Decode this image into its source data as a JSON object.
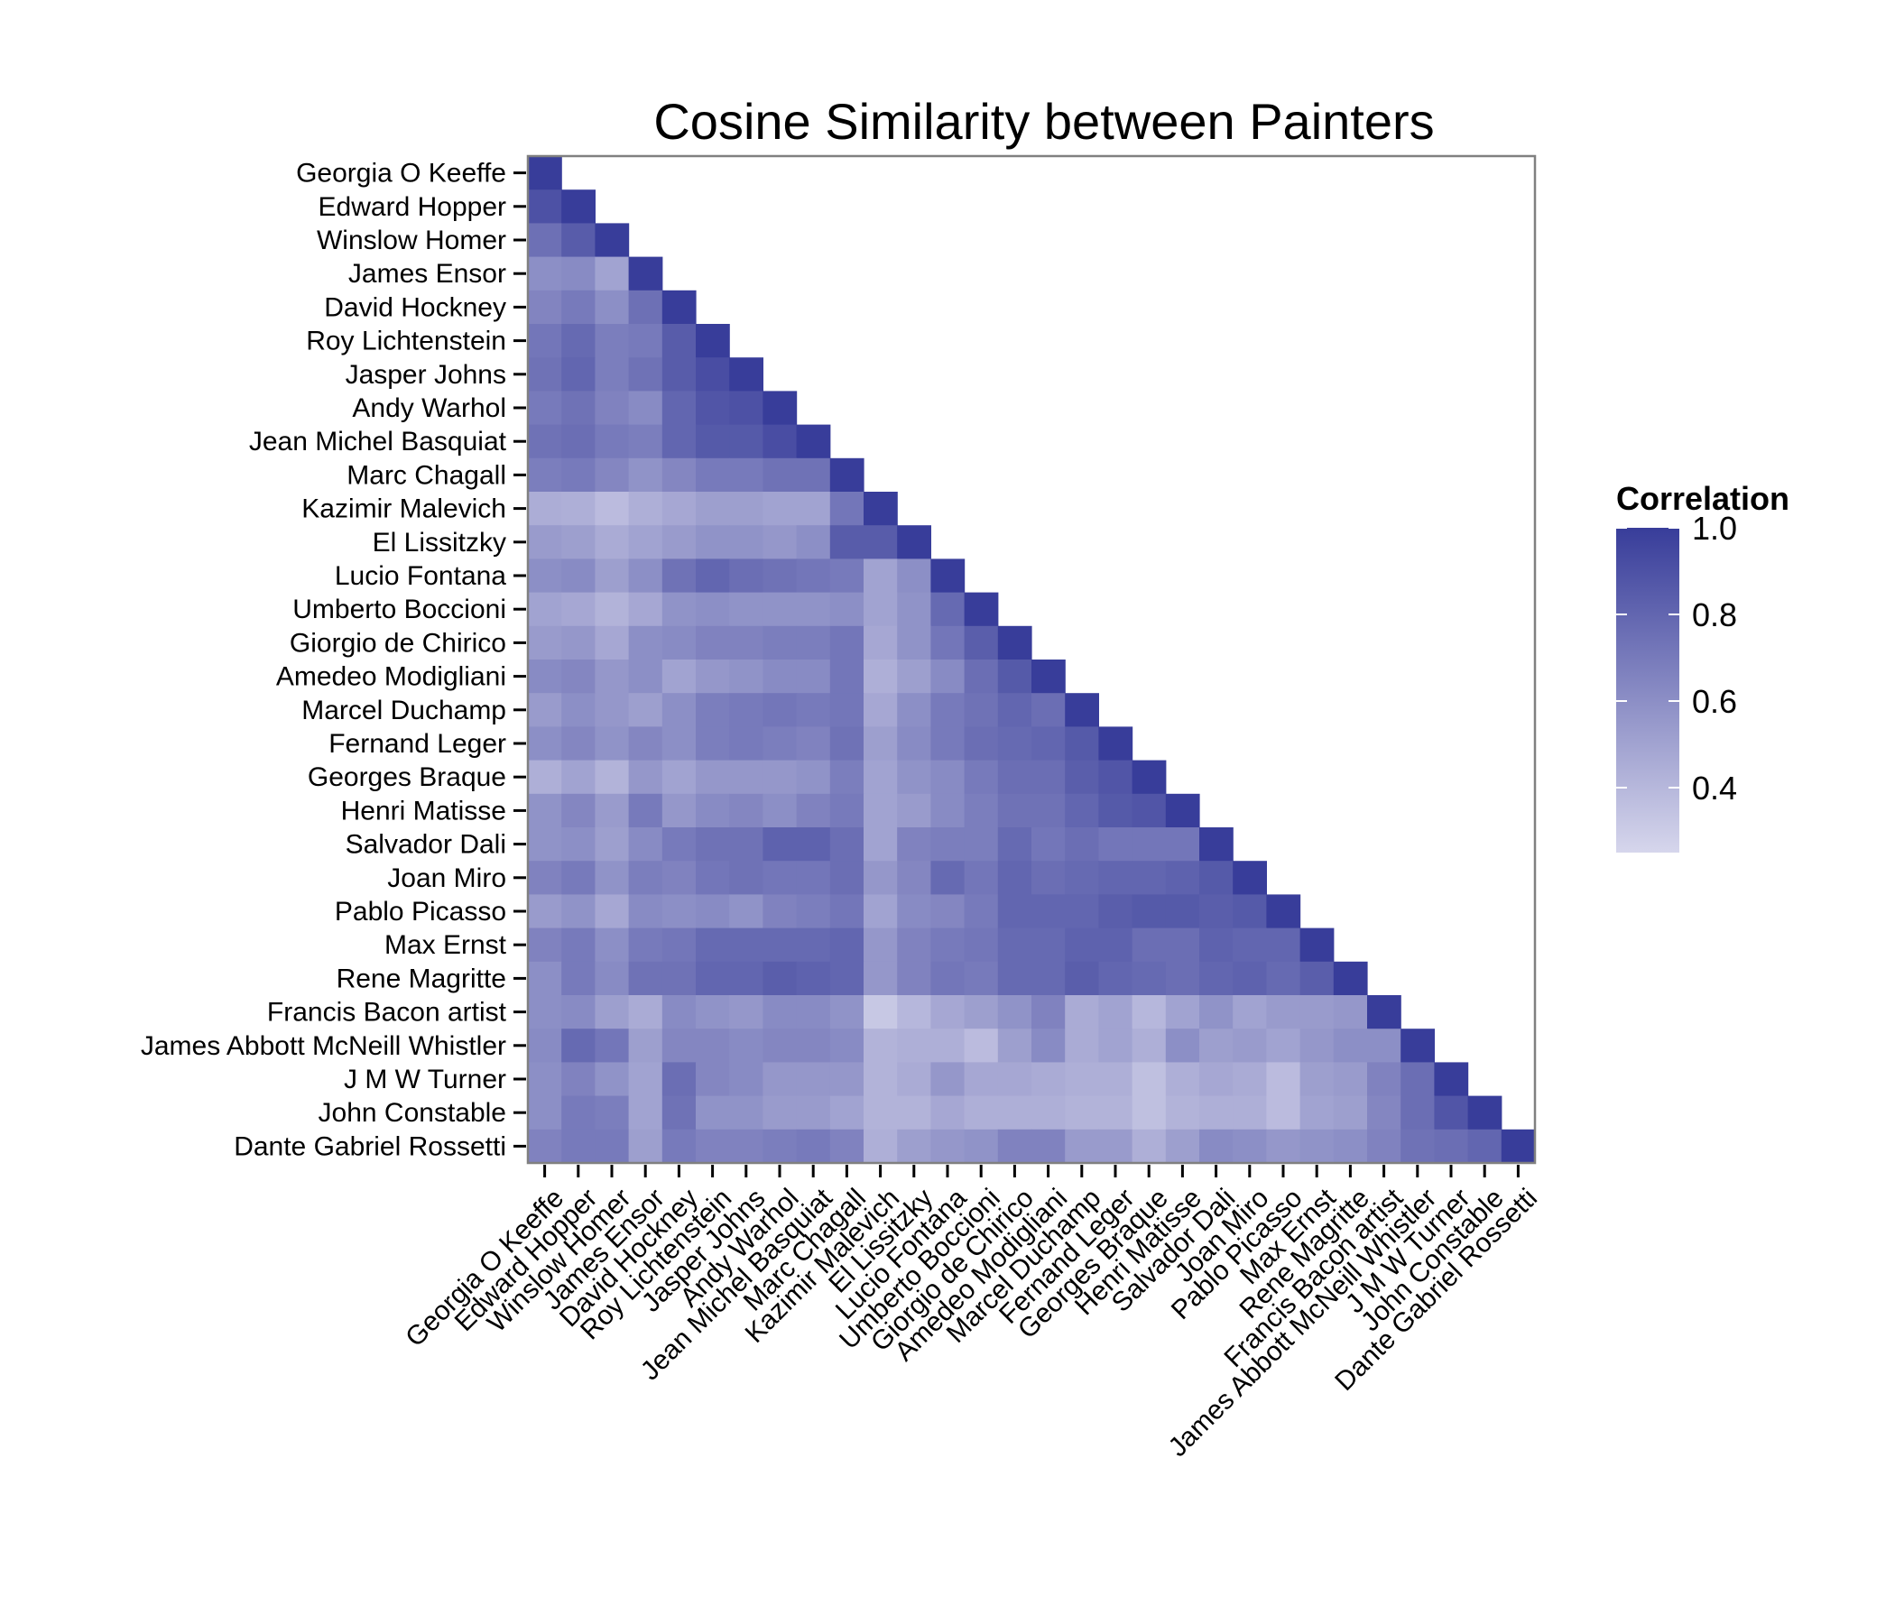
{
  "chart_data": {
    "type": "heatmap",
    "title": "Cosine Similarity between Painters",
    "triangle": "lower",
    "labels": [
      "Georgia O Keeffe",
      "Edward Hopper",
      "Winslow Homer",
      "James Ensor",
      "David Hockney",
      "Roy Lichtenstein",
      "Jasper Johns",
      "Andy Warhol",
      "Jean Michel Basquiat",
      "Marc Chagall",
      "Kazimir Malevich",
      "El Lissitzky",
      "Lucio Fontana",
      "Umberto Boccioni",
      "Giorgio de Chirico",
      "Amedeo Modigliani",
      "Marcel Duchamp",
      "Fernand Leger",
      "Georges Braque",
      "Henri Matisse",
      "Salvador Dali",
      "Joan Miro",
      "Pablo Picasso",
      "Max Ernst",
      "Rene Magritte",
      "Francis Bacon  artist ",
      "James Abbott McNeill Whistler",
      "J  M  W  Turner",
      "John Constable",
      "Dante Gabriel Rossetti"
    ],
    "values": [
      [
        1.0
      ],
      [
        0.9,
        1.0
      ],
      [
        0.75,
        0.85,
        1.0
      ],
      [
        0.6,
        0.62,
        0.5,
        1.0
      ],
      [
        0.65,
        0.7,
        0.6,
        0.75,
        1.0
      ],
      [
        0.72,
        0.78,
        0.68,
        0.7,
        0.85,
        1.0
      ],
      [
        0.74,
        0.8,
        0.68,
        0.74,
        0.85,
        0.92,
        1.0
      ],
      [
        0.7,
        0.74,
        0.66,
        0.62,
        0.8,
        0.88,
        0.9,
        1.0
      ],
      [
        0.74,
        0.76,
        0.7,
        0.68,
        0.8,
        0.86,
        0.86,
        0.92,
        1.0
      ],
      [
        0.68,
        0.7,
        0.64,
        0.58,
        0.64,
        0.7,
        0.7,
        0.74,
        0.74,
        1.0
      ],
      [
        0.45,
        0.44,
        0.38,
        0.44,
        0.48,
        0.52,
        0.52,
        0.5,
        0.5,
        0.72,
        1.0
      ],
      [
        0.54,
        0.52,
        0.46,
        0.5,
        0.54,
        0.58,
        0.58,
        0.56,
        0.6,
        0.85,
        0.85,
        1.0
      ],
      [
        0.6,
        0.62,
        0.52,
        0.6,
        0.74,
        0.8,
        0.76,
        0.74,
        0.72,
        0.7,
        0.5,
        0.6,
        1.0
      ],
      [
        0.5,
        0.48,
        0.42,
        0.48,
        0.58,
        0.6,
        0.58,
        0.58,
        0.58,
        0.6,
        0.5,
        0.58,
        0.78,
        1.0
      ],
      [
        0.54,
        0.56,
        0.48,
        0.6,
        0.62,
        0.66,
        0.66,
        0.68,
        0.68,
        0.72,
        0.48,
        0.58,
        0.72,
        0.84,
        1.0
      ],
      [
        0.62,
        0.64,
        0.56,
        0.6,
        0.5,
        0.56,
        0.58,
        0.62,
        0.62,
        0.72,
        0.44,
        0.52,
        0.62,
        0.76,
        0.86,
        1.0
      ],
      [
        0.54,
        0.6,
        0.56,
        0.52,
        0.6,
        0.68,
        0.7,
        0.72,
        0.7,
        0.72,
        0.48,
        0.6,
        0.7,
        0.74,
        0.8,
        0.76,
        1.0
      ],
      [
        0.6,
        0.64,
        0.58,
        0.64,
        0.6,
        0.68,
        0.7,
        0.68,
        0.66,
        0.74,
        0.52,
        0.62,
        0.7,
        0.76,
        0.78,
        0.8,
        0.86,
        1.0
      ],
      [
        0.44,
        0.5,
        0.42,
        0.56,
        0.5,
        0.56,
        0.56,
        0.56,
        0.58,
        0.68,
        0.5,
        0.58,
        0.62,
        0.7,
        0.76,
        0.76,
        0.84,
        0.88,
        1.0
      ],
      [
        0.58,
        0.64,
        0.54,
        0.7,
        0.56,
        0.62,
        0.64,
        0.6,
        0.66,
        0.7,
        0.5,
        0.54,
        0.62,
        0.68,
        0.74,
        0.74,
        0.8,
        0.86,
        0.88,
        1.0
      ],
      [
        0.58,
        0.6,
        0.52,
        0.62,
        0.7,
        0.74,
        0.74,
        0.82,
        0.82,
        0.76,
        0.5,
        0.66,
        0.68,
        0.68,
        0.78,
        0.72,
        0.76,
        0.72,
        0.72,
        0.72,
        1.0
      ],
      [
        0.66,
        0.7,
        0.58,
        0.68,
        0.66,
        0.72,
        0.74,
        0.72,
        0.72,
        0.76,
        0.56,
        0.64,
        0.78,
        0.72,
        0.8,
        0.76,
        0.78,
        0.8,
        0.8,
        0.82,
        0.86,
        1.0
      ],
      [
        0.54,
        0.58,
        0.48,
        0.62,
        0.6,
        0.62,
        0.58,
        0.66,
        0.68,
        0.72,
        0.5,
        0.62,
        0.64,
        0.7,
        0.8,
        0.8,
        0.8,
        0.84,
        0.86,
        0.86,
        0.84,
        0.86,
        1.0
      ],
      [
        0.66,
        0.7,
        0.6,
        0.7,
        0.72,
        0.78,
        0.78,
        0.78,
        0.78,
        0.8,
        0.56,
        0.66,
        0.7,
        0.72,
        0.78,
        0.78,
        0.82,
        0.82,
        0.76,
        0.76,
        0.82,
        0.8,
        0.8,
        1.0
      ],
      [
        0.6,
        0.7,
        0.62,
        0.74,
        0.74,
        0.8,
        0.8,
        0.84,
        0.82,
        0.8,
        0.56,
        0.66,
        0.72,
        0.7,
        0.78,
        0.78,
        0.84,
        0.8,
        0.78,
        0.76,
        0.8,
        0.82,
        0.78,
        0.84,
        1.0
      ],
      [
        0.6,
        0.62,
        0.52,
        0.46,
        0.62,
        0.58,
        0.56,
        0.62,
        0.62,
        0.58,
        0.32,
        0.4,
        0.48,
        0.52,
        0.58,
        0.66,
        0.46,
        0.5,
        0.4,
        0.5,
        0.58,
        0.5,
        0.54,
        0.54,
        0.56,
        1.0
      ],
      [
        0.62,
        0.78,
        0.72,
        0.52,
        0.64,
        0.64,
        0.62,
        0.64,
        0.64,
        0.62,
        0.42,
        0.44,
        0.44,
        0.38,
        0.52,
        0.62,
        0.46,
        0.5,
        0.44,
        0.6,
        0.52,
        0.54,
        0.5,
        0.56,
        0.6,
        0.6,
        1.0
      ],
      [
        0.6,
        0.66,
        0.58,
        0.5,
        0.76,
        0.64,
        0.62,
        0.56,
        0.56,
        0.56,
        0.42,
        0.46,
        0.56,
        0.48,
        0.48,
        0.46,
        0.44,
        0.44,
        0.36,
        0.44,
        0.48,
        0.46,
        0.38,
        0.52,
        0.54,
        0.66,
        0.76,
        1.0
      ],
      [
        0.6,
        0.7,
        0.68,
        0.5,
        0.74,
        0.58,
        0.58,
        0.54,
        0.54,
        0.5,
        0.42,
        0.42,
        0.48,
        0.44,
        0.44,
        0.44,
        0.42,
        0.42,
        0.36,
        0.42,
        0.44,
        0.44,
        0.38,
        0.5,
        0.52,
        0.64,
        0.76,
        0.88,
        1.0
      ],
      [
        0.66,
        0.7,
        0.7,
        0.52,
        0.7,
        0.66,
        0.66,
        0.68,
        0.7,
        0.66,
        0.44,
        0.52,
        0.56,
        0.58,
        0.66,
        0.66,
        0.54,
        0.54,
        0.44,
        0.52,
        0.62,
        0.6,
        0.56,
        0.58,
        0.6,
        0.66,
        0.74,
        0.76,
        0.8,
        1.0
      ]
    ],
    "legend": {
      "title": "Correlation",
      "ticks": [
        "1.0",
        "0.8",
        "0.6",
        "0.4"
      ],
      "tick_values": [
        1.0,
        0.8,
        0.6,
        0.4
      ],
      "range": [
        0.25,
        1.0
      ],
      "position": "right"
    },
    "colors": {
      "low": "#d6d6ec",
      "high": "#383d9a",
      "frame": "#808080"
    }
  }
}
